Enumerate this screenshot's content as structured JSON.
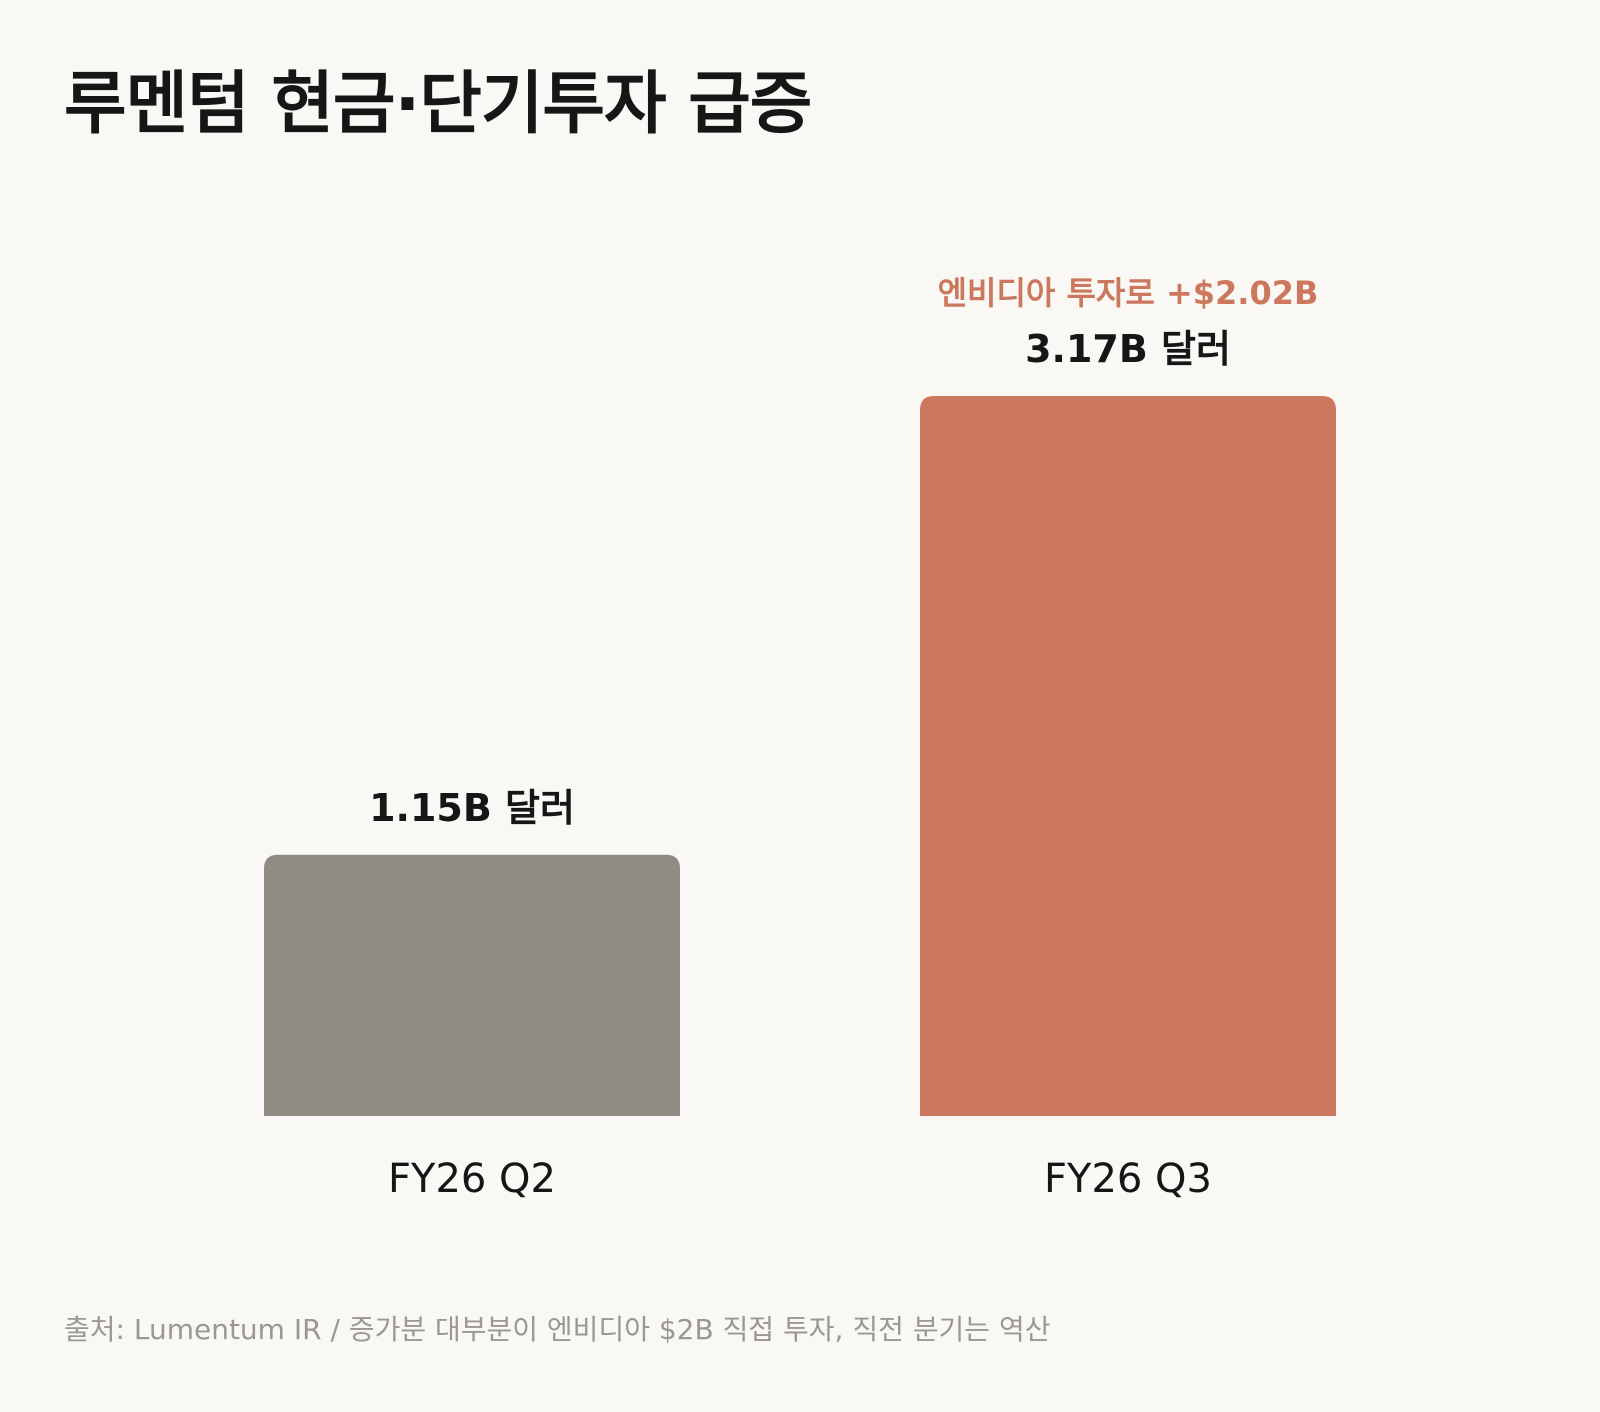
{
  "title": "루멘텀 현금·단기투자 급증",
  "source": "출처: Lumentum IR / 증가분 대부분이 엔비디아 $2B 직접 투자, 직전 분기는 역산",
  "chart_data": {
    "type": "bar",
    "categories": [
      "FY26 Q2",
      "FY26 Q3"
    ],
    "values": [
      1.15,
      3.17
    ],
    "unit": "B 달러",
    "value_labels": [
      "1.15B 달러",
      "3.17B 달러"
    ],
    "annotations": [
      {
        "category": "FY26 Q3",
        "text": "엔비디아 투자로 +$2.02B"
      }
    ],
    "bar_colors": [
      "#8e8c83",
      "#cc785e"
    ],
    "annotation_color": "#cc785e",
    "title": "루멘텀 현금·단기투자 급증",
    "xlabel": "",
    "ylabel": "",
    "ylim": [
      0,
      3.17
    ],
    "grid": false,
    "legend": "none"
  }
}
